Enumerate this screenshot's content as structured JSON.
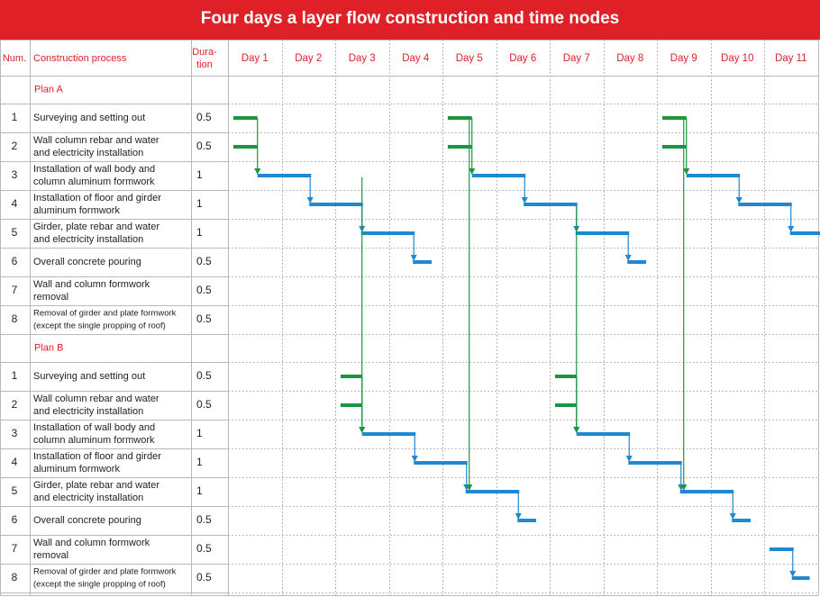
{
  "title": "Four days a layer flow construction and time nodes",
  "headers": {
    "num": "Num.",
    "process": "Construction process",
    "duration_line1": "Dura-",
    "duration_line2": "tion",
    "days": [
      "Day 1",
      "Day 2",
      "Day 3",
      "Day 4",
      "Day 5",
      "Day 6",
      "Day 7",
      "Day 8",
      "Day 9",
      "Day 10",
      "Day 11"
    ]
  },
  "colors": {
    "title_bg": "#e02027",
    "header_text": "#e02027",
    "prep_bar": "#1a9641",
    "main_bar": "#1e88d2",
    "link_line": "#1a9641",
    "grid": "#b8b8b8"
  },
  "chart_data": {
    "type": "gantt",
    "title": "Four days a layer flow construction and time nodes",
    "x_unit": "day",
    "x_categories": [
      "Day 1",
      "Day 2",
      "Day 3",
      "Day 4",
      "Day 5",
      "Day 6",
      "Day 7",
      "Day 8",
      "Day 9",
      "Day 10",
      "Day 11"
    ],
    "plans": [
      {
        "name": "Plan A",
        "tasks": [
          {
            "num": "1",
            "process": [
              "Surveying and setting out"
            ],
            "duration": "0.5"
          },
          {
            "num": "2",
            "process": [
              "Wall column rebar and water",
              "and electricity installation"
            ],
            "duration": "0.5"
          },
          {
            "num": "3",
            "process": [
              "Installation of wall body and",
              "column aluminum formwork"
            ],
            "duration": "1"
          },
          {
            "num": "4",
            "process": [
              "Installation of floor and girder",
              "aluminum formwork"
            ],
            "duration": "1"
          },
          {
            "num": "5",
            "process": [
              "Girder, plate rebar and water",
              "and electricity installation"
            ],
            "duration": "1"
          },
          {
            "num": "6",
            "process": [
              "Overall concrete pouring"
            ],
            "duration": "0.5"
          },
          {
            "num": "7",
            "process": [
              "Wall and column formwork",
              "removal"
            ],
            "duration": "0.5"
          },
          {
            "num": "8",
            "process": [
              "Removal of girder and plate formwork",
              "(except the single propping of roof)"
            ],
            "duration": "0.5",
            "small": true
          }
        ],
        "cycles": [
          {
            "prep_start": 0.1,
            "prep_end": 0.55,
            "main_start": 0.55,
            "main_dur": 1
          },
          {
            "prep_start": 4.1,
            "prep_end": 4.55,
            "main_start": 4.55,
            "main_dur": 1
          },
          {
            "prep_start": 8.1,
            "prep_end": 8.55,
            "main_start": 8.55,
            "main_dur": 1
          }
        ]
      },
      {
        "name": "Plan B",
        "tasks": [
          {
            "num": "1",
            "process": [
              "Surveying and setting out"
            ],
            "duration": "0.5"
          },
          {
            "num": "2",
            "process": [
              "Wall column rebar and water",
              "and electricity installation"
            ],
            "duration": "0.5"
          },
          {
            "num": "3",
            "process": [
              "Installation of wall body and",
              "column aluminum formwork"
            ],
            "duration": "1"
          },
          {
            "num": "4",
            "process": [
              "Installation of floor and girder",
              "aluminum formwork"
            ],
            "duration": "1"
          },
          {
            "num": "5",
            "process": [
              "Girder, plate rebar and water",
              "and electricity installation"
            ],
            "duration": "1"
          },
          {
            "num": "6",
            "process": [
              "Overall concrete pouring"
            ],
            "duration": "0.5"
          },
          {
            "num": "7",
            "process": [
              "Wall and column formwork",
              "removal"
            ],
            "duration": "0.5"
          },
          {
            "num": "8",
            "process": [
              "Removal of girder and plate formwork",
              "(except the single propping of roof)"
            ],
            "duration": "0.5",
            "small": true
          }
        ],
        "cycles": [
          {
            "prep_start": 2.1,
            "prep_end": 2.5,
            "main_start": 2.5,
            "main_dur": 1
          },
          {
            "prep_start": 6.1,
            "prep_end": 6.5,
            "main_start": 6.5,
            "main_dur": 1
          }
        ],
        "removal": {
          "start": 10.1,
          "mid": 10.55,
          "end": 10.85
        }
      }
    ]
  }
}
